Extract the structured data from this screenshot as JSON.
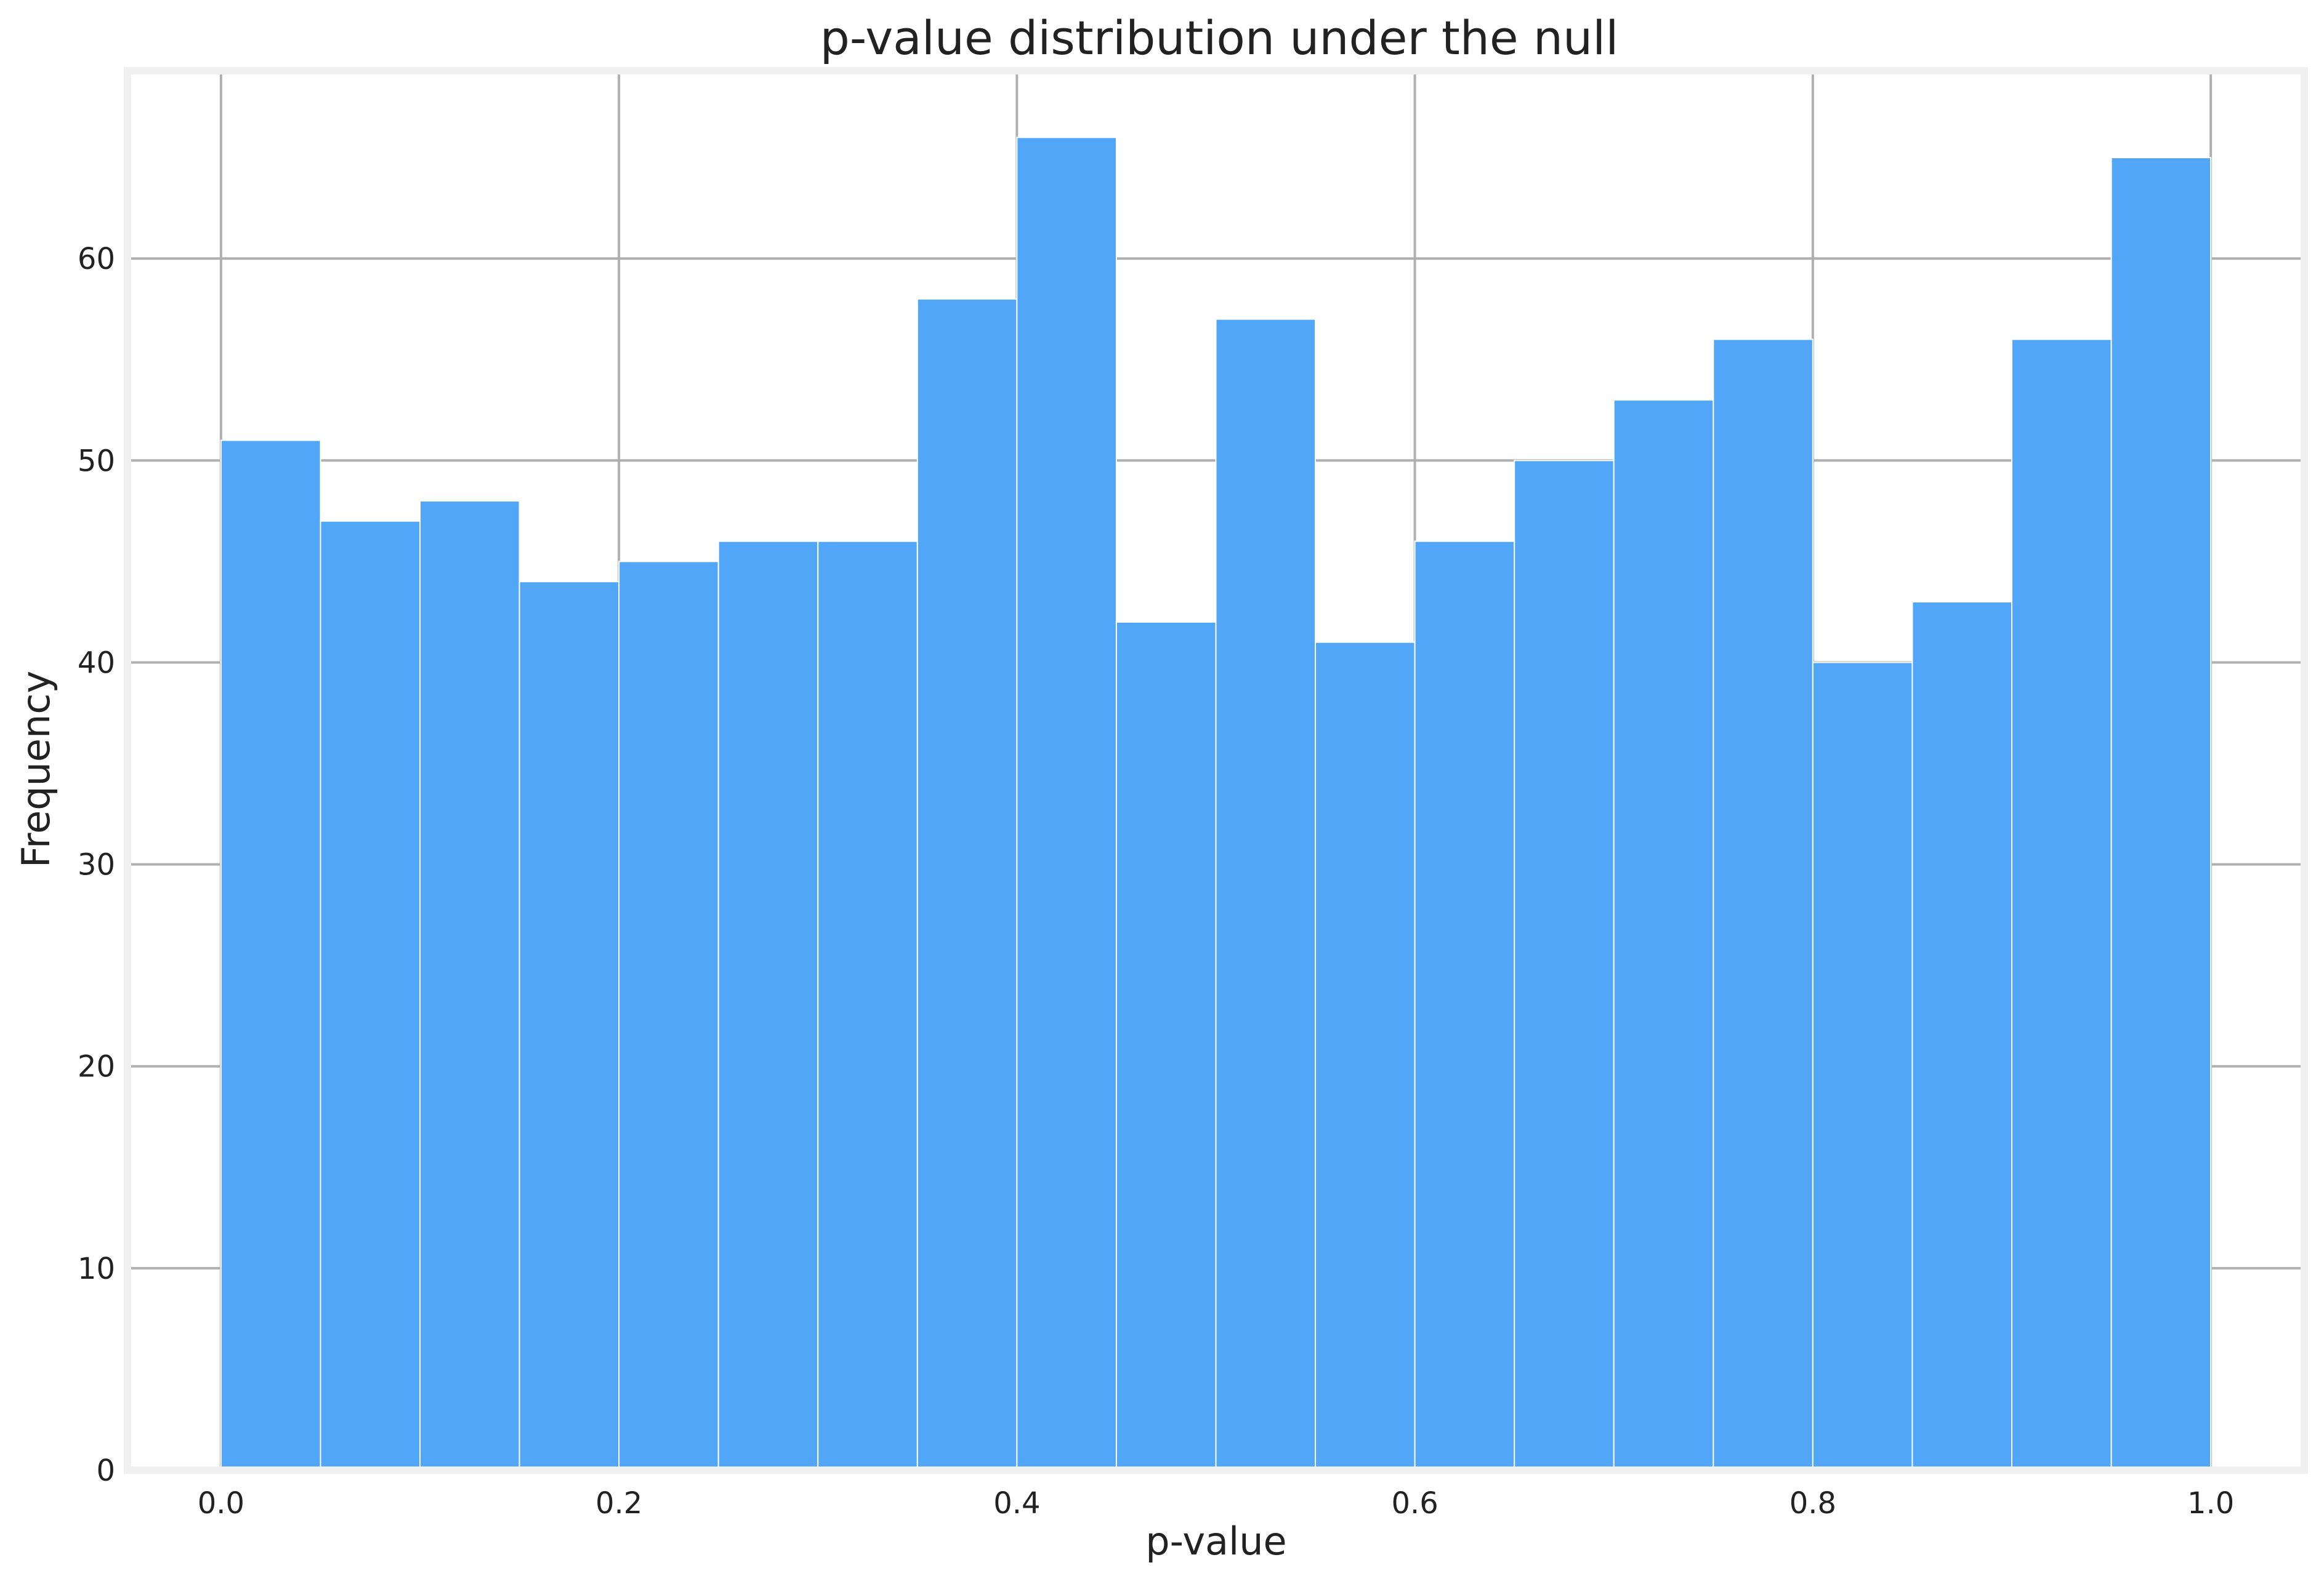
{
  "chart_data": {
    "type": "bar",
    "title": "p-value distribution under the null",
    "xlabel": "p-value",
    "ylabel": "Frequency",
    "bins": [
      {
        "x0": 0.0,
        "x1": 0.05,
        "count": 51
      },
      {
        "x0": 0.05,
        "x1": 0.1,
        "count": 47
      },
      {
        "x0": 0.1,
        "x1": 0.15,
        "count": 48
      },
      {
        "x0": 0.15,
        "x1": 0.2,
        "count": 44
      },
      {
        "x0": 0.2,
        "x1": 0.25,
        "count": 45
      },
      {
        "x0": 0.25,
        "x1": 0.3,
        "count": 46
      },
      {
        "x0": 0.3,
        "x1": 0.35,
        "count": 46
      },
      {
        "x0": 0.35,
        "x1": 0.4,
        "count": 58
      },
      {
        "x0": 0.4,
        "x1": 0.45,
        "count": 66
      },
      {
        "x0": 0.45,
        "x1": 0.5,
        "count": 42
      },
      {
        "x0": 0.5,
        "x1": 0.55,
        "count": 57
      },
      {
        "x0": 0.55,
        "x1": 0.6,
        "count": 41
      },
      {
        "x0": 0.6,
        "x1": 0.65,
        "count": 46
      },
      {
        "x0": 0.65,
        "x1": 0.7,
        "count": 50
      },
      {
        "x0": 0.7,
        "x1": 0.75,
        "count": 53
      },
      {
        "x0": 0.75,
        "x1": 0.8,
        "count": 56
      },
      {
        "x0": 0.8,
        "x1": 0.85,
        "count": 40
      },
      {
        "x0": 0.85,
        "x1": 0.9,
        "count": 43
      },
      {
        "x0": 0.9,
        "x1": 0.95,
        "count": 56
      },
      {
        "x0": 0.95,
        "x1": 1.0,
        "count": 65
      }
    ],
    "xlim": [
      -0.047,
      1.047
    ],
    "ylim": [
      0,
      69.3
    ],
    "xticks": [
      0.0,
      0.2,
      0.4,
      0.6,
      0.8,
      1.0
    ],
    "xtick_labels": [
      "0.0",
      "0.2",
      "0.4",
      "0.6",
      "0.8",
      "1.0"
    ],
    "yticks": [
      0,
      10,
      20,
      30,
      40,
      50,
      60
    ],
    "ytick_labels": [
      "0",
      "10",
      "20",
      "30",
      "40",
      "50",
      "60"
    ],
    "grid": true,
    "colors": {
      "bar": "#52a6f8",
      "bar_edge": "#ffffff",
      "grid": "#b0b0b0",
      "frame": "#f0f0f0",
      "text": "#222222"
    }
  }
}
